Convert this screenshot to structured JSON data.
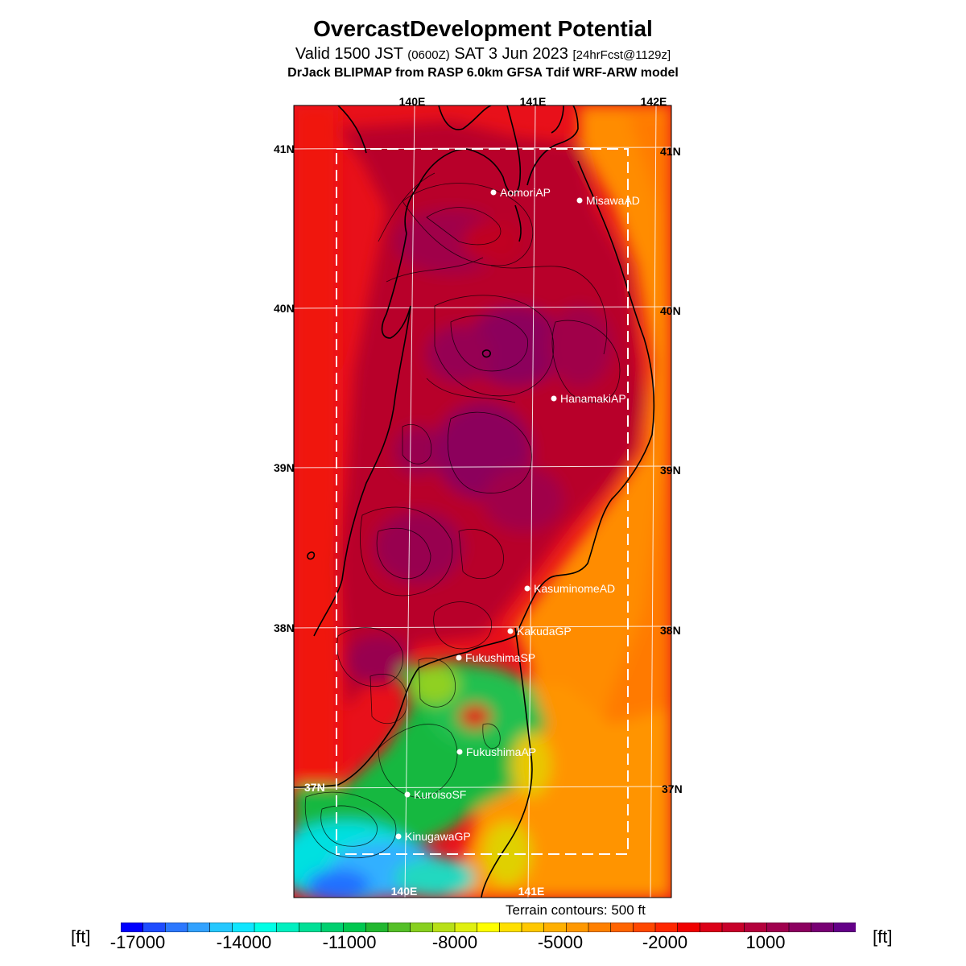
{
  "title": "OvercastDevelopment Potential",
  "subtitle": {
    "main": "Valid 1500 JST",
    "utc": "(0600Z)",
    "date": "SAT 3 Jun 2023",
    "forecast": "[24hrFcst@1129z]"
  },
  "subtitle2": "DrJack BLIPMAP from RASP 6.0km GFSA Tdif WRF-ARW model",
  "map": {
    "lon_labels_top": [
      "140E",
      "141E",
      "142E"
    ],
    "lon_labels_bottom": [
      "140E",
      "141E"
    ],
    "lat_labels_left": [
      "41N",
      "40N",
      "39N",
      "38N",
      "37N"
    ],
    "lat_labels_right": [
      "41N",
      "40N",
      "39N",
      "38N",
      "37N"
    ],
    "stations": [
      {
        "name": "AomoriAP"
      },
      {
        "name": "MisawaAD"
      },
      {
        "name": "HanamakiAP"
      },
      {
        "name": "KasuminomeAD"
      },
      {
        "name": "KakudaGP"
      },
      {
        "name": "FukushimaSP"
      },
      {
        "name": "FukushimaAP"
      },
      {
        "name": "KuroisoSF"
      },
      {
        "name": "KinugawaGP"
      }
    ]
  },
  "contour_note": "Terrain contours: 500 ft",
  "colorbar": {
    "unit_left": "[ft]",
    "unit_right": "[ft]",
    "tick_labels": [
      "-17000",
      "-14000",
      "-11000",
      "-8000",
      "-5000",
      "-2000",
      "1000"
    ],
    "colors": [
      "#0000ff",
      "#1e4cff",
      "#2c78ff",
      "#32a2ff",
      "#25c8ff",
      "#10e6ff",
      "#00ffe6",
      "#00f0c0",
      "#00e096",
      "#00d070",
      "#00c850",
      "#22b830",
      "#55c028",
      "#88d020",
      "#b8e018",
      "#e0f010",
      "#ffff00",
      "#ffe000",
      "#ffc800",
      "#ffb000",
      "#ff9800",
      "#ff8000",
      "#ff6400",
      "#ff4800",
      "#ff2800",
      "#f00000",
      "#dc0018",
      "#c8002a",
      "#b4003c",
      "#a0004e",
      "#8c0060",
      "#780074",
      "#640088"
    ]
  }
}
